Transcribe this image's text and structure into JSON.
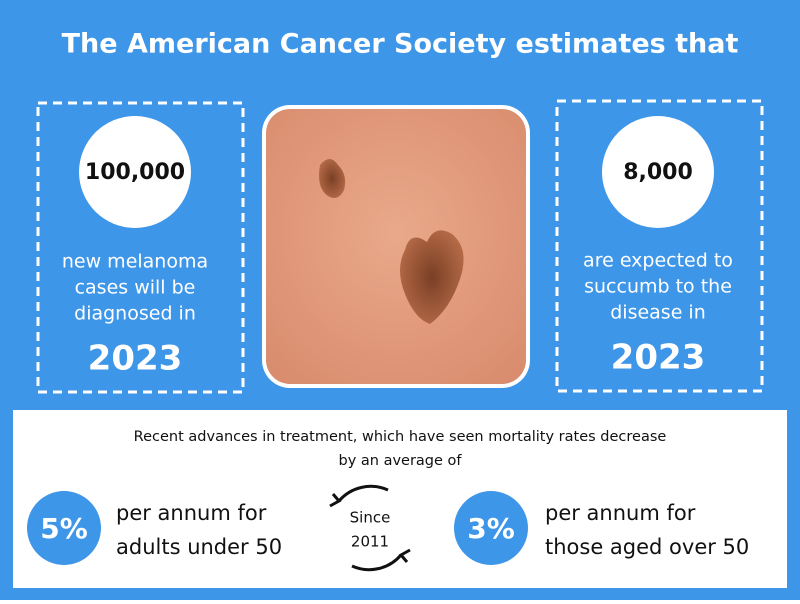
{
  "title": "The American Cancer Society estimates that",
  "left_card": {
    "number": "100,000",
    "lines": [
      "new melanoma",
      "cases will be",
      "diagnosed in"
    ],
    "year": "2023"
  },
  "right_card": {
    "number": "8,000",
    "lines": [
      "are expected to",
      "succumb to the",
      "disease in"
    ],
    "year": "2023"
  },
  "bottom": {
    "intro": [
      "Recent advances in treatment, which have seen mortality rates decrease",
      "by an average of"
    ],
    "center_label": [
      "Since",
      "2011"
    ],
    "stats": [
      {
        "value": "5%",
        "lines": [
          "per annum for",
          "adults under 50"
        ]
      },
      {
        "value": "3%",
        "lines": [
          "per annum for",
          "those aged over 50"
        ]
      }
    ]
  }
}
